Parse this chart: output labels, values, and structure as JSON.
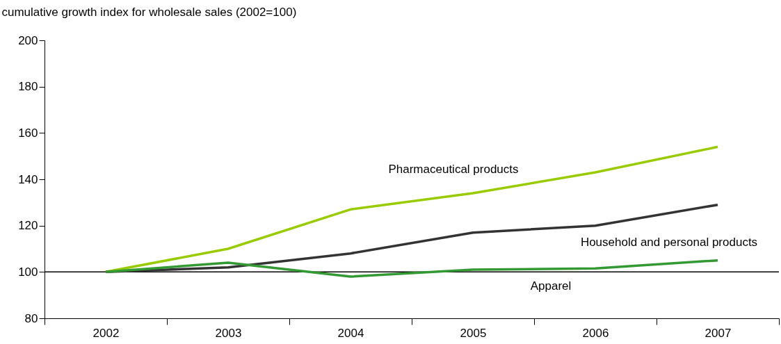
{
  "chart_data": {
    "type": "line",
    "ylabel": "cumulative growth index for wholesale sales (2002=100)",
    "categories": [
      "2002",
      "2003",
      "2004",
      "2005",
      "2006",
      "2007"
    ],
    "series": [
      {
        "name": "Pharmaceutical products",
        "color": "#99cc00",
        "values": [
          100,
          110,
          127,
          134,
          143,
          154
        ]
      },
      {
        "name": "Household and personal products",
        "color": "#333333",
        "values": [
          100,
          102,
          108,
          117,
          120,
          129
        ]
      },
      {
        "name": "Apparel",
        "color": "#339933",
        "values": [
          100,
          104,
          98,
          101,
          101.5,
          105
        ]
      }
    ],
    "ylim": [
      80,
      200
    ],
    "yticks": [
      80,
      100,
      120,
      140,
      160,
      180,
      200
    ],
    "ref_lines": [
      {
        "axis": "y",
        "value": 100,
        "color": "#000000"
      }
    ],
    "grid": false,
    "line_style": "solid"
  }
}
